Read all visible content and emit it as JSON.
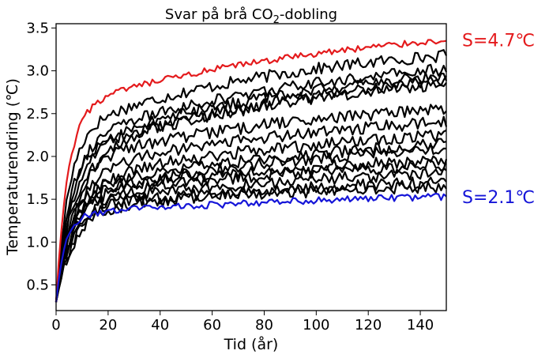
{
  "chart_data": {
    "type": "line",
    "title": {
      "prefix": "Svar på brå CO",
      "subscript": "2",
      "suffix": "-dobling"
    },
    "xlabel": "Tid (år)",
    "ylabel": "Temperaturendring (℃)",
    "xlim": [
      0,
      150
    ],
    "ylim": [
      0.2,
      3.55
    ],
    "xticks": [
      0,
      20,
      40,
      60,
      80,
      100,
      120,
      140
    ],
    "yticks": [
      0.5,
      1.0,
      1.5,
      2.0,
      2.5,
      3.0,
      3.5
    ],
    "ytick_labels": [
      "0.5",
      "1.0",
      "1.5",
      "2.0",
      "2.5",
      "3.0",
      "3.5"
    ],
    "grid": false,
    "highlight_series": [
      {
        "label": "S=4.7℃",
        "color": "#e41a1c",
        "final": 3.36,
        "plateau": 2.55,
        "fast_tau": 4.5,
        "slow_tau": 110
      },
      {
        "label": "S=2.1℃",
        "color": "#1515d8",
        "final": 1.53,
        "plateau": 1.32,
        "fast_tau": 3.5,
        "slow_tau": 120
      }
    ],
    "ensemble_series": [
      {
        "final": 3.18,
        "plateau": 2.3
      },
      {
        "final": 3.02,
        "plateau": 2.15
      },
      {
        "final": 2.95,
        "plateau": 2.1
      },
      {
        "final": 2.9,
        "plateau": 2.0
      },
      {
        "final": 2.85,
        "plateau": 2.05
      },
      {
        "final": 2.55,
        "plateau": 1.9
      },
      {
        "final": 2.4,
        "plateau": 1.8
      },
      {
        "final": 2.25,
        "plateau": 1.7
      },
      {
        "final": 2.15,
        "plateau": 1.6
      },
      {
        "final": 2.1,
        "plateau": 1.55
      },
      {
        "final": 1.95,
        "plateau": 1.55
      },
      {
        "final": 1.9,
        "plateau": 1.5
      },
      {
        "final": 1.8,
        "plateau": 1.45
      },
      {
        "final": 1.7,
        "plateau": 1.4
      },
      {
        "final": 1.65,
        "plateau": 1.38
      }
    ],
    "ensemble_color": "#000000"
  }
}
